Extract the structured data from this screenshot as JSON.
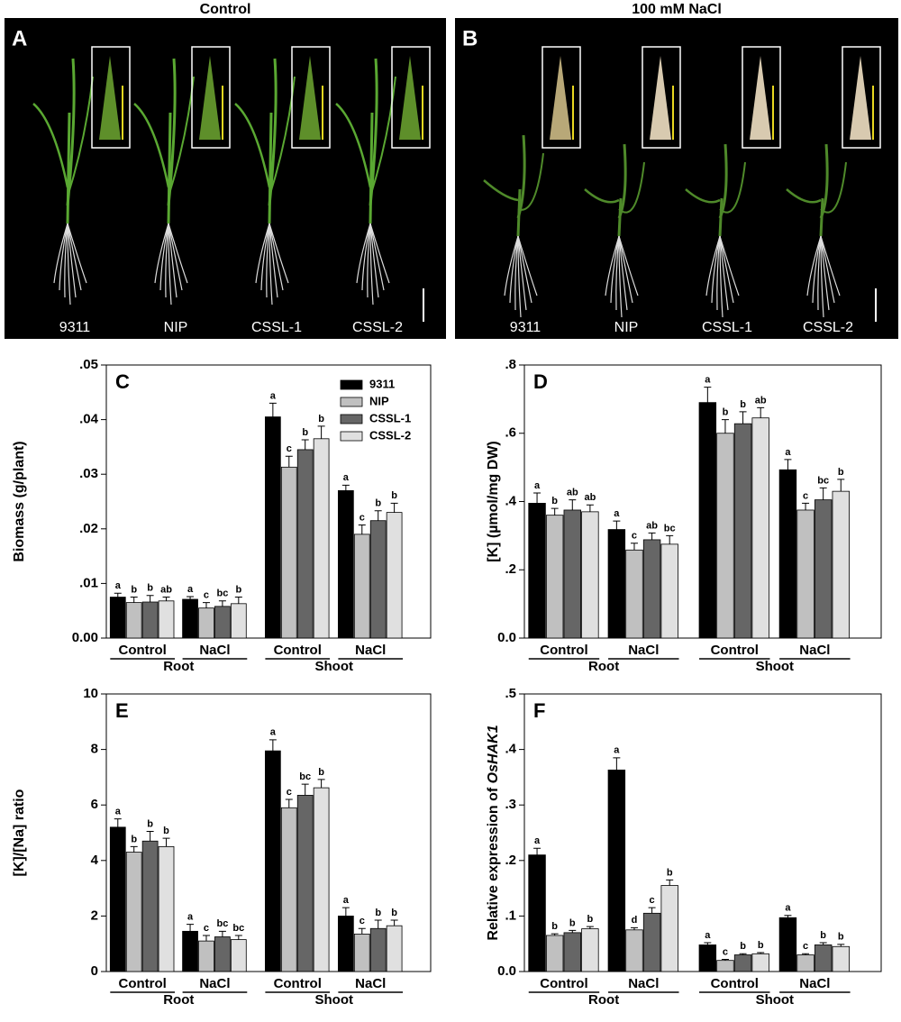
{
  "panels": [
    {
      "letter": "A",
      "title": "Control",
      "labels": [
        "9311",
        "NIP",
        "CSSL-1",
        "CSSL-2"
      ]
    },
    {
      "letter": "B",
      "title": "100 mM NaCl",
      "labels": [
        "9311",
        "NIP",
        "CSSL-1",
        "CSSL-2"
      ]
    }
  ],
  "chart_data": [
    {
      "type": "bar",
      "letter": "C",
      "ylabel": "Biomass (g/plant)",
      "categories": [
        "Control",
        "NaCl",
        "Control",
        "NaCl"
      ],
      "group_labels": [
        "Root",
        "Shoot"
      ],
      "ylim": [
        0,
        0.05
      ],
      "yticks": [
        {
          "value": 0,
          "label": "0.00"
        },
        {
          "value": 0.01,
          "label": ".01"
        },
        {
          "value": 0.02,
          "label": ".02"
        },
        {
          "value": 0.03,
          "label": ".03"
        },
        {
          "value": 0.04,
          "label": ".04"
        },
        {
          "value": 0.05,
          "label": ".05"
        }
      ],
      "legend": "upper right",
      "series": [
        {
          "name": "9311",
          "color": "#000000",
          "values": [
            0.0075,
            0.0071,
            0.0405,
            0.027
          ],
          "errors": [
            0.0007,
            0.0005,
            0.0025,
            0.001
          ],
          "letters": [
            "a",
            "a",
            "a",
            "a"
          ]
        },
        {
          "name": "NIP",
          "color": "#c0c0c0",
          "values": [
            0.0065,
            0.0055,
            0.0313,
            0.019
          ],
          "errors": [
            0.001,
            0.001,
            0.002,
            0.0017
          ],
          "letters": [
            "b",
            "c",
            "c",
            "c"
          ]
        },
        {
          "name": "CSSL-1",
          "color": "#666666",
          "values": [
            0.0066,
            0.0058,
            0.0345,
            0.0215
          ],
          "errors": [
            0.0012,
            0.001,
            0.0018,
            0.0018
          ],
          "letters": [
            "b",
            "bc",
            "b",
            "b"
          ]
        },
        {
          "name": "CSSL-2",
          "color": "#e0e0e0",
          "values": [
            0.0068,
            0.0063,
            0.0365,
            0.023
          ],
          "errors": [
            0.0007,
            0.0012,
            0.0023,
            0.0017
          ],
          "letters": [
            "ab",
            "b",
            "b",
            "b"
          ]
        }
      ]
    },
    {
      "type": "bar",
      "letter": "D",
      "ylabel": "[K] (µmol/mg DW)",
      "categories": [
        "Control",
        "NaCl",
        "Control",
        "NaCl"
      ],
      "group_labels": [
        "Root",
        "Shoot"
      ],
      "ylim": [
        0,
        0.8
      ],
      "yticks": [
        {
          "value": 0,
          "label": "0.0"
        },
        {
          "value": 0.2,
          "label": ".2"
        },
        {
          "value": 0.4,
          "label": ".4"
        },
        {
          "value": 0.6,
          "label": ".6"
        },
        {
          "value": 0.8,
          "label": ".8"
        }
      ],
      "series": [
        {
          "name": "9311",
          "color": "#000000",
          "values": [
            0.395,
            0.318,
            0.69,
            0.493
          ],
          "errors": [
            0.03,
            0.025,
            0.045,
            0.03
          ],
          "letters": [
            "a",
            "a",
            "a",
            "a"
          ]
        },
        {
          "name": "NIP",
          "color": "#c0c0c0",
          "values": [
            0.36,
            0.258,
            0.6,
            0.375
          ],
          "errors": [
            0.02,
            0.02,
            0.04,
            0.02
          ],
          "letters": [
            "b",
            "c",
            "b",
            "c"
          ]
        },
        {
          "name": "CSSL-1",
          "color": "#666666",
          "values": [
            0.375,
            0.288,
            0.628,
            0.405
          ],
          "errors": [
            0.03,
            0.02,
            0.035,
            0.035
          ],
          "letters": [
            "ab",
            "ab",
            "b",
            "bc"
          ]
        },
        {
          "name": "CSSL-2",
          "color": "#e0e0e0",
          "values": [
            0.37,
            0.275,
            0.645,
            0.43
          ],
          "errors": [
            0.02,
            0.025,
            0.03,
            0.035
          ],
          "letters": [
            "ab",
            "bc",
            "ab",
            "b"
          ]
        }
      ]
    },
    {
      "type": "bar",
      "letter": "E",
      "ylabel": "[K]/[Na] ratio",
      "categories": [
        "Control",
        "NaCl",
        "Control",
        "NaCl"
      ],
      "group_labels": [
        "Root",
        "Shoot"
      ],
      "ylim": [
        0,
        10
      ],
      "yticks": [
        0,
        2,
        4,
        6,
        8,
        10
      ],
      "series": [
        {
          "name": "9311",
          "color": "#000000",
          "values": [
            5.2,
            1.45,
            7.95,
            2.0
          ],
          "errors": [
            0.3,
            0.25,
            0.4,
            0.3
          ],
          "letters": [
            "a",
            "a",
            "a",
            "a"
          ]
        },
        {
          "name": "NIP",
          "color": "#c0c0c0",
          "values": [
            4.3,
            1.1,
            5.9,
            1.35
          ],
          "errors": [
            0.2,
            0.2,
            0.3,
            0.2
          ],
          "letters": [
            "b",
            "c",
            "c",
            "c"
          ]
        },
        {
          "name": "CSSL-1",
          "color": "#666666",
          "values": [
            4.7,
            1.25,
            6.35,
            1.55
          ],
          "errors": [
            0.35,
            0.2,
            0.4,
            0.3
          ],
          "letters": [
            "b",
            "bc",
            "bc",
            "b"
          ]
        },
        {
          "name": "CSSL-2",
          "color": "#e0e0e0",
          "values": [
            4.5,
            1.15,
            6.62,
            1.65
          ],
          "errors": [
            0.3,
            0.15,
            0.3,
            0.2
          ],
          "letters": [
            "b",
            "bc",
            "b",
            "b"
          ]
        }
      ]
    },
    {
      "type": "bar",
      "letter": "F",
      "ylabel": "Relative expression of ",
      "ylabel_gene": "OsHAK1",
      "categories": [
        "Control",
        "NaCl",
        "Control",
        "NaCl"
      ],
      "group_labels": [
        "Root",
        "Shoot"
      ],
      "ylim": [
        0,
        0.5
      ],
      "yticks": [
        {
          "value": 0,
          "label": "0.0"
        },
        {
          "value": 0.1,
          "label": ".1"
        },
        {
          "value": 0.2,
          "label": ".2"
        },
        {
          "value": 0.3,
          "label": ".3"
        },
        {
          "value": 0.4,
          "label": ".4"
        },
        {
          "value": 0.5,
          "label": ".5"
        }
      ],
      "series": [
        {
          "name": "9311",
          "color": "#000000",
          "values": [
            0.21,
            0.363,
            0.048,
            0.097
          ],
          "errors": [
            0.012,
            0.022,
            0.004,
            0.004
          ],
          "letters": [
            "a",
            "a",
            "a",
            "a"
          ]
        },
        {
          "name": "NIP",
          "color": "#c0c0c0",
          "values": [
            0.065,
            0.075,
            0.02,
            0.03
          ],
          "errors": [
            0.003,
            0.004,
            0.002,
            0.002
          ],
          "letters": [
            "b",
            "d",
            "c",
            "c"
          ]
        },
        {
          "name": "CSSL-1",
          "color": "#666666",
          "values": [
            0.07,
            0.105,
            0.03,
            0.048
          ],
          "errors": [
            0.004,
            0.01,
            0.002,
            0.004
          ],
          "letters": [
            "b",
            "c",
            "b",
            "b"
          ]
        },
        {
          "name": "CSSL-2",
          "color": "#e0e0e0",
          "values": [
            0.077,
            0.155,
            0.032,
            0.045
          ],
          "errors": [
            0.004,
            0.01,
            0.002,
            0.004
          ],
          "letters": [
            "b",
            "b",
            "b",
            "b"
          ]
        }
      ]
    }
  ]
}
